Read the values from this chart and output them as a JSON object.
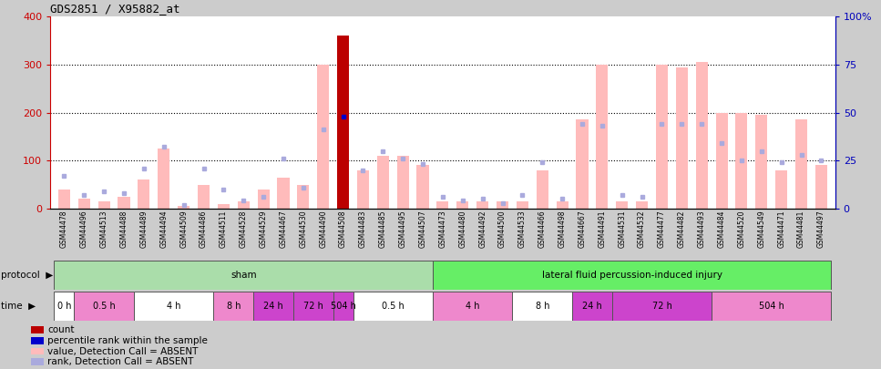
{
  "title": "GDS2851 / X95882_at",
  "samples": [
    "GSM44478",
    "GSM44496",
    "GSM44513",
    "GSM44488",
    "GSM44489",
    "GSM44494",
    "GSM44509",
    "GSM44486",
    "GSM44511",
    "GSM44528",
    "GSM44529",
    "GSM44467",
    "GSM44530",
    "GSM44490",
    "GSM44508",
    "GSM44483",
    "GSM44485",
    "GSM44495",
    "GSM44507",
    "GSM44473",
    "GSM44480",
    "GSM44492",
    "GSM44500",
    "GSM44533",
    "GSM44466",
    "GSM44498",
    "GSM44667",
    "GSM44491",
    "GSM44531",
    "GSM44532",
    "GSM44477",
    "GSM44482",
    "GSM44493",
    "GSM44484",
    "GSM44520",
    "GSM44549",
    "GSM44471",
    "GSM44481",
    "GSM44497"
  ],
  "values": [
    40,
    20,
    15,
    25,
    60,
    125,
    5,
    50,
    10,
    15,
    40,
    65,
    50,
    300,
    360,
    80,
    110,
    110,
    90,
    15,
    15,
    15,
    15,
    15,
    80,
    15,
    185,
    300,
    15,
    15,
    300,
    295,
    305,
    200,
    200,
    195,
    80,
    185,
    90
  ],
  "ranks_pct": [
    17,
    7,
    9,
    8,
    21,
    32,
    2,
    21,
    10,
    4,
    6,
    26,
    11,
    41,
    48,
    20,
    30,
    26,
    23,
    6,
    4,
    5,
    3,
    7,
    24,
    5,
    44,
    43,
    7,
    6,
    44,
    44,
    44,
    34,
    25,
    30,
    24,
    28,
    25
  ],
  "is_count_bar": [
    false,
    false,
    false,
    false,
    false,
    false,
    false,
    false,
    false,
    false,
    false,
    false,
    false,
    false,
    true,
    false,
    false,
    false,
    false,
    false,
    false,
    false,
    false,
    false,
    false,
    false,
    false,
    false,
    false,
    false,
    false,
    false,
    false,
    false,
    false,
    false,
    false,
    false,
    false
  ],
  "protocol_groups": [
    {
      "label": "sham",
      "start": 0,
      "end": 18,
      "color": "#aaddaa"
    },
    {
      "label": "lateral fluid percussion-induced injury",
      "start": 19,
      "end": 38,
      "color": "#66ee66"
    }
  ],
  "time_groups": [
    {
      "label": "0 h",
      "start": 0,
      "end": 0,
      "color": "white"
    },
    {
      "label": "0.5 h",
      "start": 1,
      "end": 3,
      "color": "#ee88cc"
    },
    {
      "label": "4 h",
      "start": 4,
      "end": 7,
      "color": "white"
    },
    {
      "label": "8 h",
      "start": 8,
      "end": 9,
      "color": "#ee88cc"
    },
    {
      "label": "24 h",
      "start": 10,
      "end": 11,
      "color": "#cc44cc"
    },
    {
      "label": "72 h",
      "start": 12,
      "end": 13,
      "color": "#cc44cc"
    },
    {
      "label": "504 h",
      "start": 14,
      "end": 14,
      "color": "#cc44cc"
    },
    {
      "label": "0.5 h",
      "start": 15,
      "end": 18,
      "color": "white"
    },
    {
      "label": "4 h",
      "start": 19,
      "end": 22,
      "color": "#ee88cc"
    },
    {
      "label": "8 h",
      "start": 23,
      "end": 25,
      "color": "white"
    },
    {
      "label": "24 h",
      "start": 26,
      "end": 27,
      "color": "#cc44cc"
    },
    {
      "label": "72 h",
      "start": 28,
      "end": 32,
      "color": "#cc44cc"
    },
    {
      "label": "504 h",
      "start": 33,
      "end": 38,
      "color": "#ee88cc"
    }
  ],
  "ylim_left": [
    0,
    400
  ],
  "ylim_right": [
    0,
    100
  ],
  "left_ticks": [
    0,
    100,
    200,
    300,
    400
  ],
  "right_ticks": [
    0,
    25,
    50,
    75,
    100
  ],
  "bar_color_normal": "#ffbbbb",
  "bar_color_count": "#bb0000",
  "rank_color": "#aaaadd",
  "rank_color_count": "#0000cc",
  "left_label_color": "#cc0000",
  "right_label_color": "#0000bb",
  "fig_bg_color": "#cccccc",
  "chart_bg_color": "white",
  "xtick_bg_color": "#cccccc"
}
